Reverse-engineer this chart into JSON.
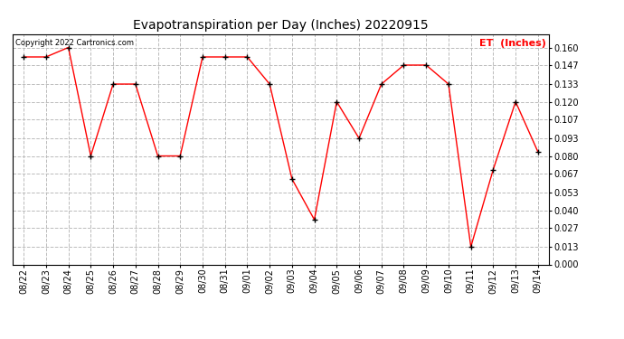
{
  "title": "Evapotranspiration per Day (Inches) 20220915",
  "legend_label": "ET  (Inches)",
  "copyright_text": "Copyright 2022 Cartronics.com",
  "dates": [
    "08/22",
    "08/23",
    "08/24",
    "08/25",
    "08/26",
    "08/27",
    "08/28",
    "08/29",
    "08/30",
    "08/31",
    "09/01",
    "09/02",
    "09/03",
    "09/04",
    "09/05",
    "09/06",
    "09/07",
    "09/08",
    "09/09",
    "09/10",
    "09/11",
    "09/12",
    "09/13",
    "09/14"
  ],
  "values": [
    0.153,
    0.153,
    0.16,
    0.08,
    0.133,
    0.133,
    0.08,
    0.08,
    0.153,
    0.153,
    0.153,
    0.133,
    0.063,
    0.033,
    0.12,
    0.093,
    0.133,
    0.147,
    0.147,
    0.133,
    0.013,
    0.07,
    0.12,
    0.083
  ],
  "ylim": [
    0.0,
    0.17
  ],
  "yticks": [
    0.0,
    0.013,
    0.027,
    0.04,
    0.053,
    0.067,
    0.08,
    0.093,
    0.107,
    0.12,
    0.133,
    0.147,
    0.16
  ],
  "line_color": "red",
  "marker_color": "black",
  "grid_color": "#bbbbbb",
  "background_color": "white",
  "title_fontsize": 10,
  "tick_fontsize": 7,
  "legend_color": "red",
  "legend_fontsize": 8,
  "copyright_color": "black",
  "copyright_fontsize": 6
}
